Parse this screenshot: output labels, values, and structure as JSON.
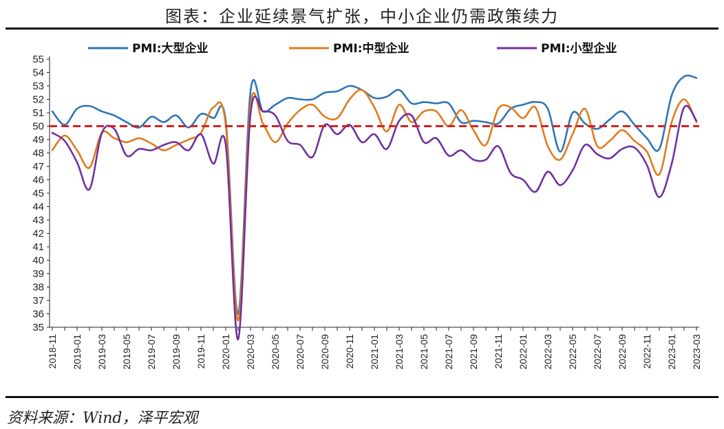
{
  "title": "图表：企业延续景气扩张，中小企业仍需政策续力",
  "source": "资料来源：Wind，泽平宏观",
  "chart_data": {
    "type": "line",
    "ylim": [
      35,
      55
    ],
    "yticks": [
      35,
      36,
      37,
      38,
      39,
      40,
      41,
      42,
      43,
      44,
      45,
      46,
      47,
      48,
      49,
      50,
      51,
      52,
      53,
      54,
      55
    ],
    "x": [
      "2018-11",
      "2018-12",
      "2019-01",
      "2019-02",
      "2019-03",
      "2019-04",
      "2019-05",
      "2019-06",
      "2019-07",
      "2019-08",
      "2019-09",
      "2019-10",
      "2019-11",
      "2019-12",
      "2020-01",
      "2020-02",
      "2020-03",
      "2020-04",
      "2020-05",
      "2020-06",
      "2020-07",
      "2020-08",
      "2020-09",
      "2020-10",
      "2020-11",
      "2020-12",
      "2021-01",
      "2021-02",
      "2021-03",
      "2021-04",
      "2021-05",
      "2021-06",
      "2021-07",
      "2021-08",
      "2021-09",
      "2021-10",
      "2021-11",
      "2021-12",
      "2022-01",
      "2022-02",
      "2022-03",
      "2022-04",
      "2022-05",
      "2022-06",
      "2022-07",
      "2022-08",
      "2022-09",
      "2022-10",
      "2022-11",
      "2022-12",
      "2023-01",
      "2023-02",
      "2023-03"
    ],
    "xtick_labels": [
      "2018-11",
      "2019-01",
      "2019-03",
      "2019-05",
      "2019-07",
      "2019-09",
      "2019-11",
      "2020-01",
      "2020-03",
      "2020-05",
      "2020-07",
      "2020-09",
      "2020-11",
      "2021-01",
      "2021-03",
      "2021-05",
      "2021-07",
      "2021-09",
      "2021-11",
      "2022-01",
      "2022-03",
      "2022-05",
      "2022-07",
      "2022-09",
      "2022-11",
      "2023-01",
      "2023-03"
    ],
    "series": [
      {
        "name": "PMI:大型企业",
        "color": "#2e75b6",
        "values": [
          51.1,
          50.1,
          51.3,
          51.5,
          51.1,
          50.8,
          50.3,
          49.9,
          50.7,
          50.3,
          50.8,
          49.9,
          50.9,
          50.6,
          50.4,
          36.0,
          52.6,
          51.1,
          51.6,
          52.1,
          52.0,
          52.0,
          52.5,
          52.6,
          53.0,
          52.7,
          52.1,
          52.2,
          52.7,
          51.7,
          51.8,
          51.7,
          51.7,
          50.3,
          50.4,
          50.3,
          50.2,
          51.3,
          51.6,
          51.8,
          51.3,
          48.1,
          51.0,
          50.2,
          49.8,
          50.5,
          51.1,
          50.1,
          49.1,
          48.3,
          52.3,
          53.7,
          53.6
        ]
      },
      {
        "name": "PMI:中型企业",
        "color": "#e07b1c",
        "values": [
          48.2,
          49.3,
          48.2,
          46.9,
          49.5,
          49.1,
          48.8,
          49.1,
          48.7,
          48.2,
          48.6,
          49.0,
          49.5,
          51.4,
          50.1,
          35.5,
          51.6,
          50.2,
          48.8,
          50.2,
          51.2,
          51.6,
          50.7,
          50.6,
          52.0,
          52.7,
          51.4,
          49.6,
          51.6,
          50.3,
          51.1,
          51.1,
          50.0,
          51.2,
          49.7,
          48.6,
          51.3,
          51.4,
          50.6,
          51.4,
          48.5,
          47.5,
          49.4,
          51.3,
          48.5,
          48.9,
          49.7,
          48.9,
          48.1,
          46.4,
          50.3,
          52.0,
          50.3
        ]
      },
      {
        "name": "PMI:小型企业",
        "color": "#7030a0",
        "values": [
          49.5,
          48.9,
          47.3,
          45.3,
          49.5,
          49.8,
          47.8,
          48.3,
          48.2,
          48.6,
          48.8,
          48.2,
          49.4,
          47.2,
          48.6,
          34.1,
          50.9,
          51.1,
          50.8,
          48.9,
          48.6,
          47.7,
          50.1,
          49.4,
          50.1,
          48.8,
          49.4,
          48.3,
          50.4,
          50.8,
          48.8,
          49.1,
          47.8,
          48.2,
          47.5,
          47.5,
          48.5,
          46.5,
          46.0,
          45.1,
          46.6,
          45.6,
          46.7,
          48.6,
          47.9,
          47.6,
          48.3,
          48.4,
          47.1,
          44.7,
          47.2,
          51.4,
          50.4
        ]
      }
    ],
    "reference_line": {
      "value": 50,
      "color": "#d92020",
      "style": "dashed"
    },
    "legend_position": "top",
    "grid": false
  }
}
